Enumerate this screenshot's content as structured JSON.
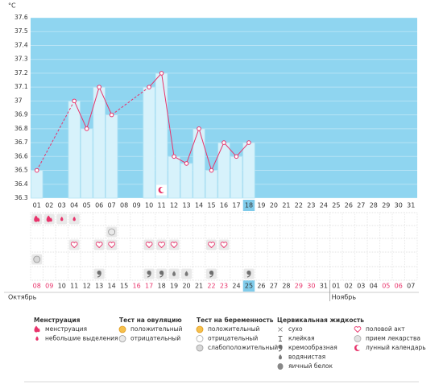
{
  "chart_data": {
    "type": "line",
    "y_unit": "°C",
    "categories": [
      "01",
      "02",
      "03",
      "04",
      "05",
      "06",
      "07",
      "08",
      "09",
      "10",
      "11",
      "12",
      "13",
      "14",
      "15",
      "16",
      "17",
      "18",
      "19",
      "20",
      "21",
      "22",
      "23",
      "24",
      "25",
      "26",
      "27",
      "28",
      "29",
      "30",
      "31"
    ],
    "values": [
      36.5,
      null,
      null,
      37.0,
      36.8,
      37.1,
      36.9,
      null,
      null,
      37.1,
      37.2,
      36.6,
      36.55,
      36.8,
      36.5,
      36.7,
      36.6,
      36.7,
      null,
      null,
      null,
      null,
      null,
      null,
      null,
      null,
      null,
      null,
      null,
      null,
      null
    ],
    "bars": true,
    "line_color": "#e8336b",
    "bar_color": "#d7f2fb",
    "background_color": "#8fd5f0",
    "ylim": [
      36.3,
      37.6
    ],
    "yticks": [
      37.6,
      37.5,
      37.4,
      37.3,
      37.2,
      37.1,
      37,
      36.9,
      36.8,
      36.7,
      36.6,
      36.5,
      36.4,
      36.3
    ],
    "grid": true,
    "selected_day": 18,
    "dates": [
      "08",
      "09",
      "10",
      "11",
      "12",
      "13",
      "14",
      "15",
      "16",
      "17",
      "18",
      "19",
      "20",
      "21",
      "22",
      "23",
      "24",
      "25",
      "26",
      "27",
      "28",
      "29",
      "30",
      "31",
      "01",
      "02",
      "03",
      "04",
      "05",
      "06",
      "07"
    ],
    "holiday_days": [
      1,
      2,
      9,
      10,
      15,
      16,
      22,
      23,
      29,
      30
    ],
    "holiday_color": "#e8336b",
    "months": [
      {
        "label": "Октябрь",
        "start_day": 1
      },
      {
        "label": "Ноябрь",
        "start_day": 25
      }
    ]
  },
  "legend": {
    "groups": [
      {
        "title": "Менструация",
        "items": [
          {
            "label": "менструация",
            "days": [
              1,
              2
            ]
          },
          {
            "label": "небольшие выделения",
            "days": [
              3,
              4
            ]
          }
        ]
      },
      {
        "title": "Тест на овуляцию",
        "items": [
          {
            "label": "положительный",
            "days": []
          },
          {
            "label": "отрицательный",
            "days": [
              7
            ]
          }
        ]
      },
      {
        "title": "Тест на беременность",
        "items": [
          {
            "label": "положительный",
            "days": []
          },
          {
            "label": "отрицательный",
            "days": []
          },
          {
            "label": "слабоположительный",
            "days": [
              1
            ]
          }
        ]
      },
      {
        "title": "Цервикальная жидкость",
        "items": [
          {
            "label": "сухо",
            "days": []
          },
          {
            "label": "клейкая",
            "days": []
          },
          {
            "label": "кремообразная",
            "days": [
              6,
              10,
              11,
              15,
              18
            ]
          },
          {
            "label": "водянистая",
            "days": [
              12,
              13
            ]
          },
          {
            "label": "яичный белок",
            "days": []
          }
        ]
      },
      {
        "items": [
          {
            "label": "половой акт",
            "days": [
              4,
              6,
              7,
              10,
              11,
              12,
              15,
              16
            ]
          },
          {
            "label": "прием лекарства",
            "days": []
          },
          {
            "label": "лунный календарь",
            "days": [
              11
            ]
          }
        ]
      }
    ]
  }
}
